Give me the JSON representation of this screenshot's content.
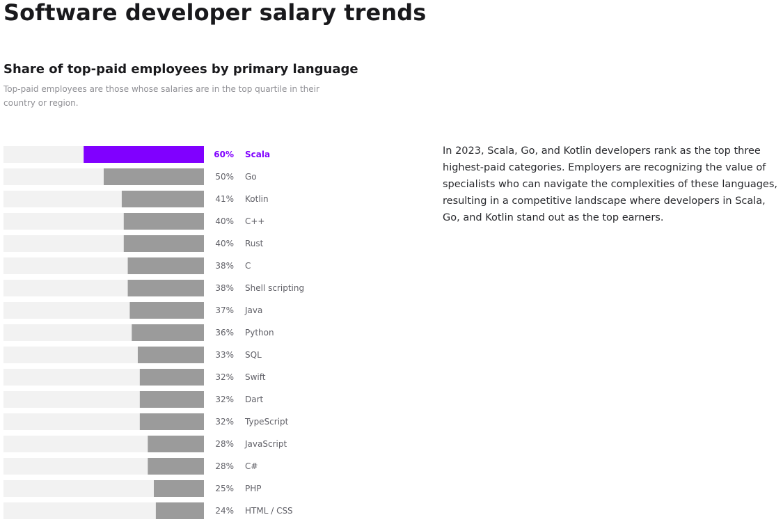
{
  "page": {
    "title": "Software developer salary trends",
    "summary": "In 2023, Scala, Go, and Kotlin developers rank as the top three highest-paid categories. Employers are recognizing the value of specialists who can navigate the complexities of these languages, resulting in a competitive landscape where developers in Scala, Go, and Kotlin stand out as the top earners."
  },
  "chart_data": {
    "type": "bar",
    "orientation": "horizontal",
    "title": "Share of top-paid employees by primary language",
    "subtitle": "Top-paid employees are those whose salaries are in the top quartile in their country or region.",
    "xlabel": "",
    "ylabel": "",
    "xlim": [
      0,
      100
    ],
    "grid": false,
    "value_suffix": "%",
    "highlight": "Scala",
    "colors": {
      "highlight": "#8000ff",
      "bar": "#9b9b9b",
      "track": "#f2f2f2",
      "label": "#5f5f66"
    },
    "categories": [
      "Scala",
      "Go",
      "Kotlin",
      "C++",
      "Rust",
      "C",
      "Shell scripting",
      "Java",
      "Python",
      "SQL",
      "Swift",
      "Dart",
      "TypeScript",
      "JavaScript",
      "C#",
      "PHP",
      "HTML / CSS"
    ],
    "values": [
      60,
      50,
      41,
      40,
      40,
      38,
      38,
      37,
      36,
      33,
      32,
      32,
      32,
      28,
      28,
      25,
      24
    ]
  }
}
